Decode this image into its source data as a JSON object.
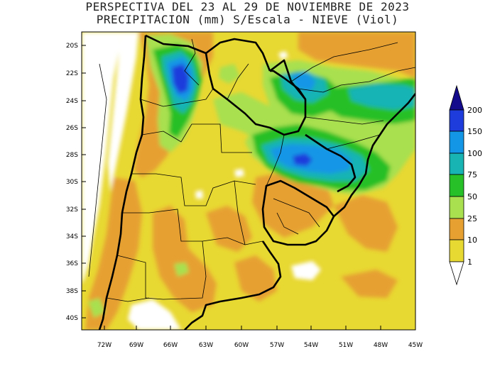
{
  "title_line1": "PERSPECTIVA DEL 23 AL 29 DE NOVIEMBRE DE 2023",
  "title_line2": "PRECIPITACION (mm) S/Escala - NIEVE (Viol)",
  "lat_labels": [
    "20S",
    "22S",
    "24S",
    "26S",
    "28S",
    "30S",
    "32S",
    "34S",
    "36S",
    "38S",
    "40S"
  ],
  "lon_labels": [
    "72W",
    "69W",
    "66W",
    "63W",
    "60W",
    "57W",
    "54W",
    "51W",
    "48W",
    "45W"
  ],
  "legend": {
    "levels": [
      "1",
      "10",
      "25",
      "50",
      "75",
      "100",
      "150",
      "200"
    ],
    "colors": {
      "lt1": "#ffffff",
      "1_10": "#e8d832",
      "10_25": "#e6a032",
      "25_50": "#a8e050",
      "50_75": "#28c028",
      "75_100": "#18b4b4",
      "100_150": "#1496e6",
      "150_200": "#1e3cdc",
      "gt200": "#140a8c"
    }
  }
}
